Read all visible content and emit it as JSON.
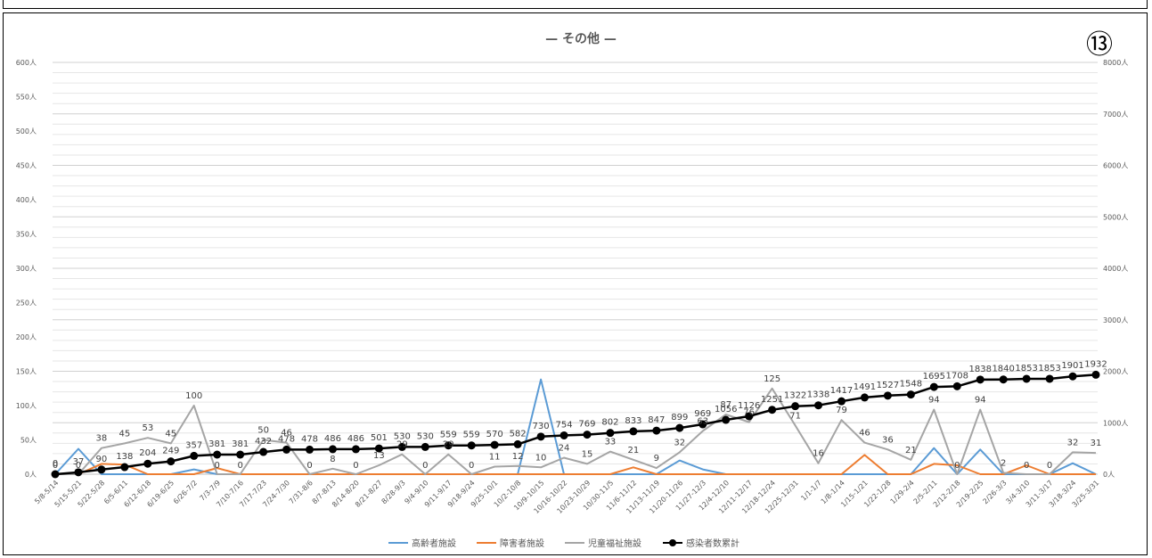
{
  "chart_data": {
    "type": "line",
    "title": "— その他 —",
    "badge": "⑬",
    "y_left": {
      "min": 0,
      "max": 600,
      "step": 50,
      "suffix": "人"
    },
    "y_right": {
      "min": 0,
      "max": 8000,
      "step": 1000,
      "suffix": "人"
    },
    "grid": true,
    "legend_position": "bottom",
    "categories": [
      "5/8-5/14",
      "5/15-5/21",
      "5/22-5/28",
      "6/5-6/11",
      "6/12-6/18",
      "6/19-6/25",
      "6/26-7/2",
      "7/3-7/9",
      "7/10-7/16",
      "7/17-7/23",
      "7/24-7/30",
      "7/31-8/6",
      "8/7-8/13",
      "8/14-8/20",
      "8/21-8/27",
      "8/28-9/3",
      "9/4-9/10",
      "9/11-9/17",
      "9/18-9/24",
      "9/25-10/1",
      "10/2-10/8",
      "10/9-10/15",
      "10/16-10/22",
      "10/23-10/29",
      "10/30-11/5",
      "11/6-11/12",
      "11/13-11/19",
      "11/20-11/26",
      "11/27-12/3",
      "12/4-12/10",
      "12/11-12/17",
      "12/18-12/24",
      "12/25-12/31",
      "1/1-1/7",
      "1/8-1/14",
      "1/15-1/21",
      "1/22-1/28",
      "1/29-2/4",
      "2/5-2/11",
      "2/12-2/18",
      "2/19-2/25",
      "2/26-3/3",
      "3/4-3/10",
      "3/11-3/17",
      "3/18-3/24",
      "3/25-3/31"
    ],
    "series": [
      {
        "name": "高齢者施設",
        "color": "#5B9BD5",
        "axis": "left",
        "labels": false,
        "values": [
          0,
          37,
          0,
          0,
          0,
          0,
          7,
          0,
          0,
          0,
          0,
          0,
          0,
          0,
          0,
          0,
          0,
          0,
          0,
          0,
          0,
          138,
          0,
          0,
          0,
          0,
          0,
          20,
          7,
          0,
          0,
          0,
          0,
          0,
          0,
          0,
          0,
          0,
          38,
          0,
          36,
          0,
          0,
          0,
          16,
          0
        ]
      },
      {
        "name": "障害者施設",
        "color": "#ED7D31",
        "axis": "left",
        "labels": false,
        "values": [
          0,
          0,
          15,
          14,
          0,
          0,
          0,
          9,
          0,
          0,
          0,
          0,
          0,
          0,
          0,
          0,
          0,
          0,
          0,
          0,
          0,
          0,
          0,
          0,
          0,
          10,
          0,
          0,
          0,
          0,
          0,
          0,
          0,
          0,
          0,
          28,
          0,
          0,
          15,
          13,
          0,
          0,
          13,
          0,
          0,
          0
        ]
      },
      {
        "name": "児童福祉施設",
        "color": "#A5A5A5",
        "axis": "left",
        "labels": true,
        "values": [
          0,
          0,
          38,
          45,
          53,
          45,
          100,
          0,
          0,
          50,
          46,
          0,
          8,
          0,
          13,
          29,
          0,
          29,
          0,
          11,
          12,
          10,
          24,
          15,
          33,
          21,
          9,
          32,
          63,
          87,
          76,
          125,
          71,
          16,
          79,
          46,
          36,
          21,
          94,
          0,
          94,
          2,
          0,
          0,
          32,
          31
        ]
      },
      {
        "name": "感染者数累計",
        "color": "#000000",
        "axis": "right",
        "labels": true,
        "markers": true,
        "values": [
          0,
          37,
          90,
          138,
          204,
          249,
          357,
          381,
          381,
          432,
          478,
          478,
          486,
          486,
          501,
          530,
          530,
          559,
          559,
          570,
          582,
          730,
          754,
          769,
          802,
          833,
          847,
          899,
          969,
          1056,
          1126,
          1251,
          1322,
          1338,
          1417,
          1491,
          1527,
          1548,
          1695,
          1708,
          1838,
          1840,
          1853,
          1853,
          1901,
          1932
        ]
      }
    ]
  }
}
